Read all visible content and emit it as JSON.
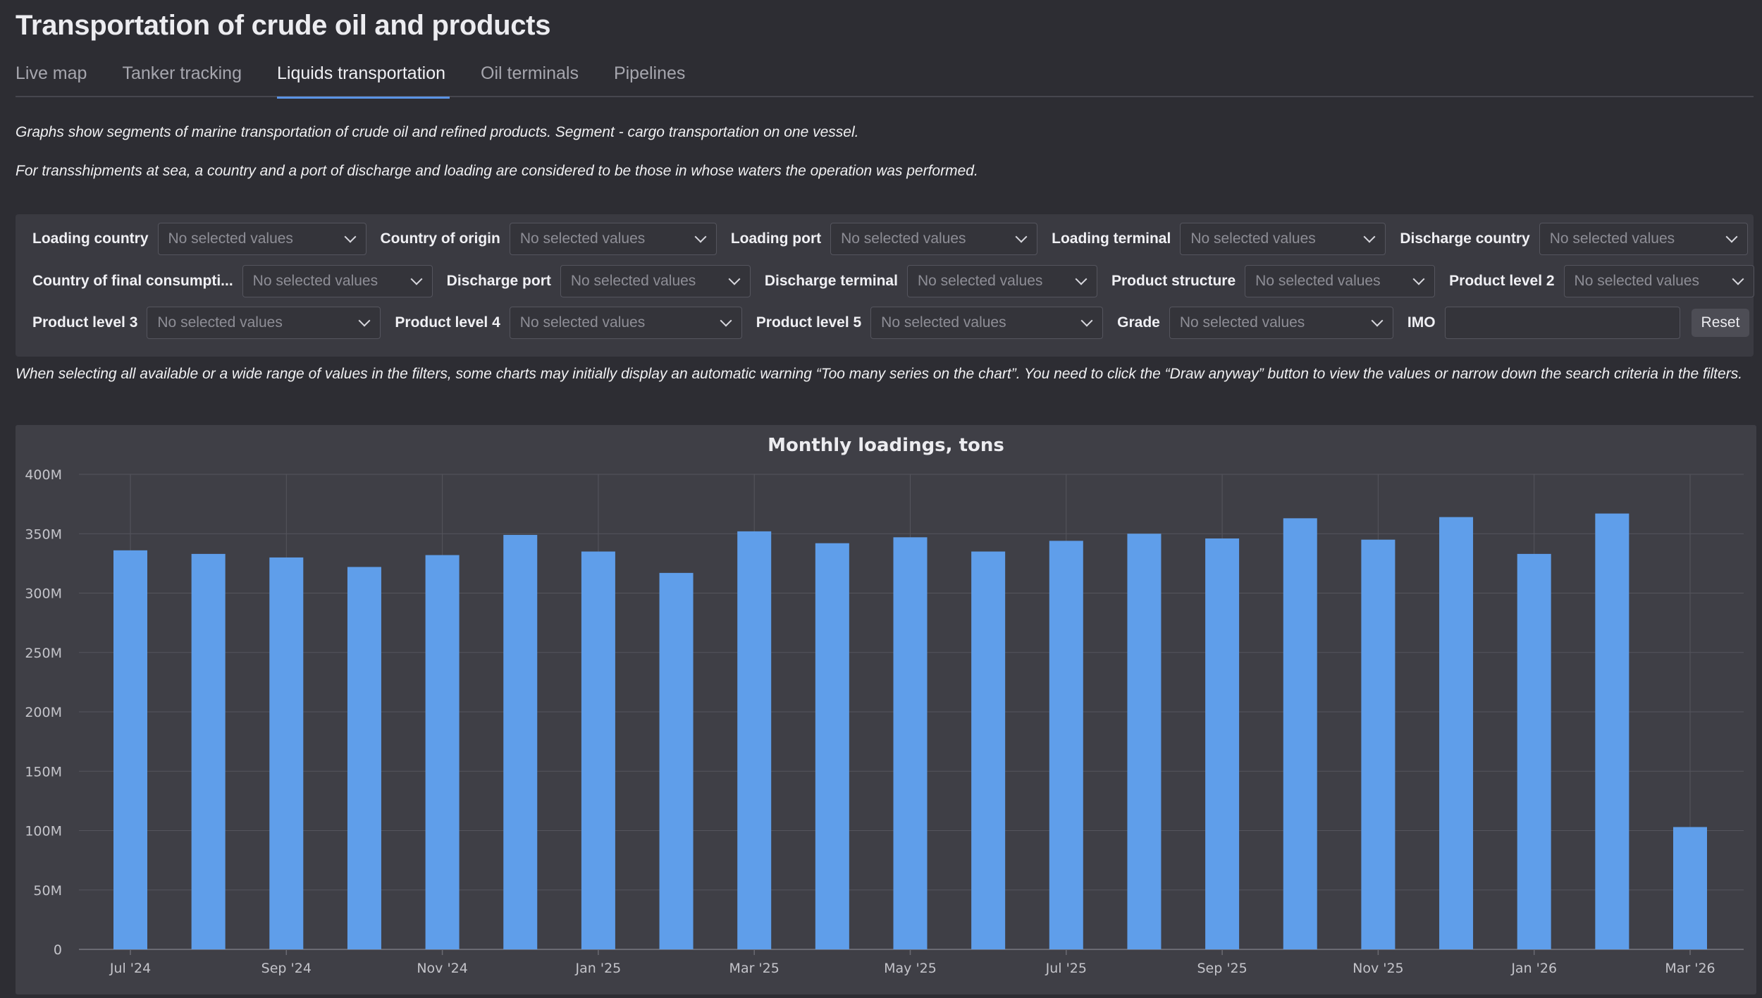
{
  "page": {
    "title": "Transportation of crude oil and products"
  },
  "tabs": [
    {
      "label": "Live map",
      "active": false
    },
    {
      "label": "Tanker tracking",
      "active": false
    },
    {
      "label": "Liquids transportation",
      "active": true
    },
    {
      "label": "Oil terminals",
      "active": false
    },
    {
      "label": "Pipelines",
      "active": false
    }
  ],
  "notes": {
    "line1": "Graphs show segments of marine transportation of crude oil and refined products. Segment - cargo transportation on one vessel.",
    "line2": "For transshipments at sea, a country and a port of discharge and loading are considered to be those in whose waters the operation was performed."
  },
  "filters": {
    "placeholder": "No selected values",
    "row1": [
      {
        "label": "Loading country"
      },
      {
        "label": "Country of origin"
      },
      {
        "label": "Loading port"
      },
      {
        "label": "Loading terminal"
      },
      {
        "label": "Discharge country"
      }
    ],
    "row2": [
      {
        "label": "Country of final consumpti..."
      },
      {
        "label": "Discharge port"
      },
      {
        "label": "Discharge terminal"
      },
      {
        "label": "Product structure"
      },
      {
        "label": "Product level 2"
      }
    ],
    "row3": [
      {
        "label": "Product level 3"
      },
      {
        "label": "Product level 4"
      },
      {
        "label": "Product level 5"
      },
      {
        "label": "Grade"
      }
    ],
    "imo_label": "IMO",
    "imo_value": "",
    "reset_label": "Reset"
  },
  "warning": "When selecting all available or a wide range of values in the filters, some charts may initially display an automatic warning “Too many series on the chart”. You need to click the “Draw anyway” button to view the values or narrow down the search criteria in the filters.",
  "colors": {
    "bar": "#5f9eea",
    "accent": "#5b94e6"
  },
  "chart_data": {
    "type": "bar",
    "title": "Monthly loadings, tons",
    "categories": [
      "Jul '24",
      "Aug '24",
      "Sep '24",
      "Oct '24",
      "Nov '24",
      "Dec '24",
      "Jan '25",
      "Feb '25",
      "Mar '25",
      "Apr '25",
      "May '25",
      "Jun '25",
      "Jul '25",
      "Aug '25",
      "Sep '25",
      "Oct '25",
      "Nov '25",
      "Dec '25",
      "Jan '26",
      "Feb '26",
      "Mar '26"
    ],
    "tick_labels": [
      "Jul '24",
      "Sep '24",
      "Nov '24",
      "Jan '25",
      "Mar '25",
      "May '25",
      "Jul '25",
      "Sep '25",
      "Nov '25",
      "Jan '26",
      "Mar '26"
    ],
    "values": [
      336000000,
      333000000,
      330000000,
      322000000,
      332000000,
      349000000,
      335000000,
      317000000,
      352000000,
      342000000,
      347000000,
      335000000,
      344000000,
      350000000,
      346000000,
      363000000,
      345000000,
      364000000,
      333000000,
      367000000,
      103000000
    ],
    "ylim": [
      0,
      400000000
    ],
    "y_ticks": [
      {
        "value": 0,
        "label": "0"
      },
      {
        "value": 50000000,
        "label": "50M"
      },
      {
        "value": 100000000,
        "label": "100M"
      },
      {
        "value": 150000000,
        "label": "150M"
      },
      {
        "value": 200000000,
        "label": "200M"
      },
      {
        "value": 250000000,
        "label": "250M"
      },
      {
        "value": 300000000,
        "label": "300M"
      },
      {
        "value": 350000000,
        "label": "350M"
      },
      {
        "value": 400000000,
        "label": "400M"
      }
    ],
    "xlabel": "",
    "ylabel": "",
    "grid": true,
    "legend": "none"
  }
}
